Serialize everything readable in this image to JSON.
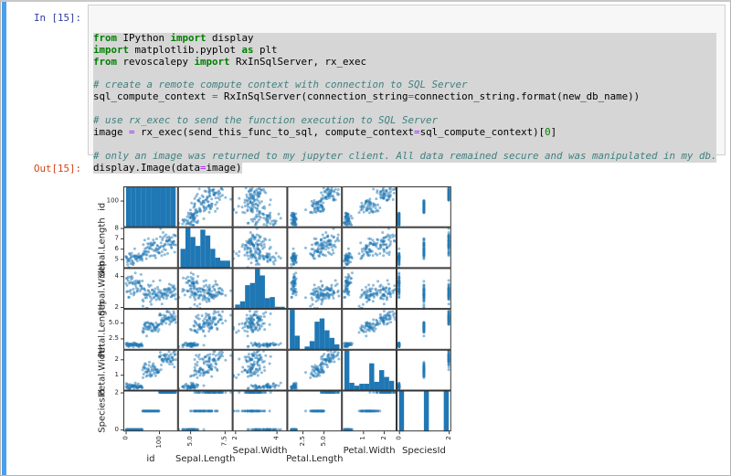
{
  "notebook": {
    "input_prompt": "In [15]:",
    "output_prompt": "Out[15]:",
    "code": {
      "lines": [
        {
          "selected": "full",
          "tokens": [
            [
              "k",
              "from"
            ],
            [
              "t",
              " IPython "
            ],
            [
              "k",
              "import"
            ],
            [
              "t",
              " display"
            ]
          ]
        },
        {
          "selected": "full",
          "tokens": [
            [
              "k",
              "import"
            ],
            [
              "t",
              " matplotlib.pyplot "
            ],
            [
              "k",
              "as"
            ],
            [
              "t",
              " plt"
            ]
          ]
        },
        {
          "selected": "full",
          "tokens": [
            [
              "k",
              "from"
            ],
            [
              "t",
              " revoscalepy "
            ],
            [
              "k",
              "import"
            ],
            [
              "t",
              " RxInSqlServer, rx_exec"
            ]
          ]
        },
        {
          "selected": "full",
          "tokens": []
        },
        {
          "selected": "full",
          "tokens": [
            [
              "c",
              "# create a remote compute context with connection to SQL Server"
            ]
          ]
        },
        {
          "selected": "full",
          "tokens": [
            [
              "t",
              "sql_compute_context "
            ],
            [
              "o",
              "="
            ],
            [
              "t",
              " RxInSqlServer(connection_string"
            ],
            [
              "o",
              "="
            ],
            [
              "t",
              "connection_string.format(new_db_name))"
            ]
          ]
        },
        {
          "selected": "full",
          "tokens": []
        },
        {
          "selected": "full",
          "tokens": [
            [
              "c",
              "# use rx_exec to send the function execution to SQL Server"
            ]
          ]
        },
        {
          "selected": "full",
          "tokens": [
            [
              "t",
              "image "
            ],
            [
              "o",
              "="
            ],
            [
              "t",
              " rx_exec(send_this_func_to_sql, compute_context"
            ],
            [
              "o",
              "="
            ],
            [
              "t",
              "sql_compute_context)["
            ],
            [
              "n",
              "0"
            ],
            [
              "t",
              "]"
            ]
          ]
        },
        {
          "selected": "full",
          "tokens": []
        },
        {
          "selected": "full",
          "tokens": [
            [
              "c",
              "# only an image was returned to my jupyter client. All data remained secure and was manipulated in my db."
            ]
          ]
        },
        {
          "selected": "inline",
          "tokens": [
            [
              "t",
              "display.Image(data"
            ],
            [
              "o",
              "="
            ],
            [
              "t",
              "image)"
            ]
          ]
        }
      ]
    }
  },
  "chart_data": {
    "type": "scatter_matrix",
    "description": "6x6 pairwise scatter matrix with histograms on the diagonal",
    "variables": [
      {
        "name": "id",
        "min": -7,
        "max": 157,
        "data_min": 1,
        "data_max": 150,
        "xticks": [
          {
            "v": 0,
            "t": "0"
          },
          {
            "v": 100,
            "t": "100"
          }
        ],
        "yticks": [
          {
            "v": 100,
            "t": "100"
          }
        ],
        "label_offset": 25
      },
      {
        "name": "Sepal.Length",
        "min": 4.12,
        "max": 8.08,
        "data_min": 4.3,
        "data_max": 7.9,
        "xticks": [
          {
            "v": 5.0,
            "t": "5.0"
          },
          {
            "v": 7.5,
            "t": "7.5"
          }
        ],
        "yticks": [
          {
            "v": 5,
            "t": "5"
          },
          {
            "v": 6,
            "t": "6"
          },
          {
            "v": 7,
            "t": "7"
          },
          {
            "v": 8,
            "t": "8"
          }
        ],
        "label_offset": 25
      },
      {
        "name": "Sepal.Width",
        "min": 1.88,
        "max": 4.52,
        "data_min": 2.0,
        "data_max": 4.4,
        "xticks": [
          {
            "v": 2,
            "t": "2"
          },
          {
            "v": 4,
            "t": "4"
          }
        ],
        "yticks": [
          {
            "v": 2,
            "t": "2"
          },
          {
            "v": 4,
            "t": "4"
          }
        ],
        "label_offset": 16
      },
      {
        "name": "Petal.Length",
        "min": 0.7,
        "max": 7.2,
        "data_min": 1.0,
        "data_max": 6.9,
        "xticks": [
          {
            "v": 2.5,
            "t": "2.5"
          },
          {
            "v": 5.0,
            "t": "5.0"
          }
        ],
        "yticks": [
          {
            "v": 2.5,
            "t": "2.5"
          },
          {
            "v": 5.0,
            "t": "5.0"
          }
        ],
        "label_offset": 25
      },
      {
        "name": "Petal.Width",
        "min": -0.02,
        "max": 2.62,
        "data_min": 0.1,
        "data_max": 2.5,
        "xticks": [
          {
            "v": 1,
            "t": "1"
          },
          {
            "v": 2,
            "t": "2"
          }
        ],
        "yticks": [
          {
            "v": 1,
            "t": "1"
          },
          {
            "v": 2,
            "t": "2"
          }
        ],
        "label_offset": 16
      },
      {
        "name": "SpeciesId",
        "min": -0.1,
        "max": 2.1,
        "data_min": 0,
        "data_max": 2,
        "xticks": [
          {
            "v": 0,
            "t": "0"
          },
          {
            "v": 2,
            "t": "2"
          }
        ],
        "yticks": [
          {
            "v": 0,
            "t": "0"
          },
          {
            "v": 2,
            "t": "2"
          }
        ],
        "label_offset": 16
      }
    ],
    "diagonal_histograms": [
      {
        "variable": "id",
        "bins": [
          15,
          15,
          15,
          15,
          15,
          15,
          15,
          15,
          15,
          15
        ]
      },
      {
        "variable": "Sepal.Length",
        "bins": [
          13,
          27,
          21,
          15,
          26,
          22,
          13,
          7,
          5,
          5
        ]
      },
      {
        "variable": "Sepal.Width",
        "bins": [
          4,
          7,
          22,
          24,
          37,
          31,
          10,
          11,
          2,
          2
        ]
      },
      {
        "variable": "Petal.Length",
        "bins": [
          37,
          13,
          0,
          3,
          8,
          26,
          29,
          18,
          11,
          5
        ]
      },
      {
        "variable": "Petal.Width",
        "bins": [
          41,
          8,
          5,
          7,
          7,
          28,
          9,
          21,
          14,
          10
        ]
      },
      {
        "variable": "SpeciesId",
        "bins": [
          50,
          0,
          0,
          0,
          0,
          50,
          0,
          0,
          0,
          50
        ]
      }
    ],
    "species_clusters": [
      {
        "species_id": 0,
        "id_start": 1,
        "mean": {
          "Sepal.Length": 5.01,
          "Sepal.Width": 3.43,
          "Petal.Length": 1.46,
          "Petal.Width": 0.25
        },
        "std": {
          "Sepal.Length": 0.35,
          "Sepal.Width": 0.38,
          "Petal.Length": 0.17,
          "Petal.Width": 0.1
        }
      },
      {
        "species_id": 1,
        "id_start": 51,
        "mean": {
          "Sepal.Length": 5.94,
          "Sepal.Width": 2.77,
          "Petal.Length": 4.26,
          "Petal.Width": 1.33
        },
        "std": {
          "Sepal.Length": 0.52,
          "Sepal.Width": 0.31,
          "Petal.Length": 0.47,
          "Petal.Width": 0.2
        }
      },
      {
        "species_id": 2,
        "id_start": 101,
        "mean": {
          "Sepal.Length": 6.59,
          "Sepal.Width": 2.97,
          "Petal.Length": 5.55,
          "Petal.Width": 2.03
        },
        "std": {
          "Sepal.Length": 0.64,
          "Sepal.Width": 0.32,
          "Petal.Length": 0.55,
          "Petal.Width": 0.27
        }
      }
    ],
    "n_points": 150,
    "legend_position": "none",
    "grid": "off",
    "style": {
      "point_color": "#1f77b4",
      "point_alpha": 0.5,
      "bar_color": "#1f77b4",
      "spine_color": "#333333",
      "text_color": "#262626",
      "tick_font_px": 7,
      "label_font_px": 10
    }
  },
  "colors": {
    "accent_bar": "#4aa0ee",
    "input_prompt": "#303f9f",
    "output_prompt": "#d84315",
    "keyword": "#008000",
    "comment": "#408080",
    "operator": "#aa22ff",
    "number": "#008000",
    "selection": "#d6d6d6",
    "cell_background": "#f7f7f7",
    "cell_border": "#cfcfcf"
  }
}
